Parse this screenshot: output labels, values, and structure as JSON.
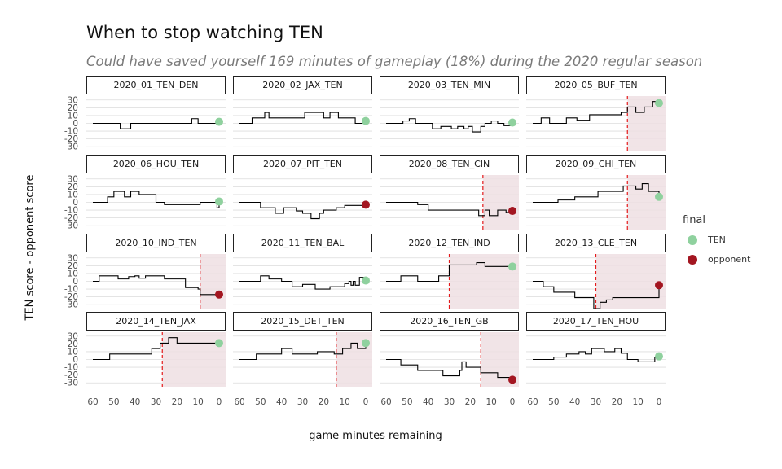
{
  "title": "When to stop watching TEN",
  "subtitle": "Could have saved yourself 169 minutes of gameplay (18%) during the 2020 regular season",
  "chart_data": {
    "type": "line",
    "facets": "small multiples, 4 x 4",
    "xlabel": "game minutes remaining",
    "ylabel": "TEN score - opponent score",
    "xlim": [
      60,
      0
    ],
    "ylim": [
      -35,
      35
    ],
    "x_ticks": [
      60,
      50,
      40,
      30,
      20,
      10,
      0
    ],
    "y_ticks": [
      30,
      20,
      10,
      0,
      -10,
      -20,
      -30
    ],
    "legend": {
      "title": "final",
      "entries": [
        {
          "label": "TEN",
          "color": "#8fd19e"
        },
        {
          "label": "opponent",
          "color": "#a31621"
        }
      ]
    },
    "cutoff_style": {
      "line_color": "#e41a1c",
      "shade_color": "#efdfe3"
    },
    "games": [
      {
        "name": "2020_01_TEN_DEN",
        "final": "TEN",
        "final_diff": 2,
        "cutoff": null,
        "steps": [
          [
            60,
            0
          ],
          [
            47,
            -7
          ],
          [
            42,
            0
          ],
          [
            13,
            6
          ],
          [
            10,
            0
          ],
          [
            0,
            2
          ]
        ]
      },
      {
        "name": "2020_02_JAX_TEN",
        "final": "TEN",
        "final_diff": 3,
        "cutoff": null,
        "steps": [
          [
            60,
            0
          ],
          [
            54,
            7
          ],
          [
            48,
            14
          ],
          [
            46,
            7
          ],
          [
            29,
            14
          ],
          [
            20,
            7
          ],
          [
            17,
            14
          ],
          [
            13,
            7
          ],
          [
            5,
            0
          ],
          [
            0,
            3
          ]
        ]
      },
      {
        "name": "2020_03_TEN_MIN",
        "final": "TEN",
        "final_diff": 1,
        "cutoff": null,
        "steps": [
          [
            60,
            0
          ],
          [
            52,
            3
          ],
          [
            49,
            6
          ],
          [
            46,
            0
          ],
          [
            38,
            -7
          ],
          [
            34,
            -4
          ],
          [
            29,
            -7
          ],
          [
            26,
            -4
          ],
          [
            23,
            -7
          ],
          [
            21,
            -4
          ],
          [
            19,
            -11
          ],
          [
            15,
            -4
          ],
          [
            13,
            0
          ],
          [
            10,
            3
          ],
          [
            7,
            0
          ],
          [
            4,
            -3
          ],
          [
            0,
            1
          ]
        ]
      },
      {
        "name": "2020_05_BUF_TEN",
        "final": "TEN",
        "final_diff": 26,
        "cutoff": 15,
        "steps": [
          [
            60,
            0
          ],
          [
            56,
            7
          ],
          [
            52,
            0
          ],
          [
            44,
            7
          ],
          [
            39,
            4
          ],
          [
            33,
            11
          ],
          [
            18,
            14
          ],
          [
            15,
            21
          ],
          [
            11,
            14
          ],
          [
            7,
            21
          ],
          [
            3,
            28
          ],
          [
            0,
            26
          ]
        ]
      },
      {
        "name": "2020_06_HOU_TEN",
        "final": "TEN",
        "final_diff": 1,
        "cutoff": null,
        "steps": [
          [
            60,
            0
          ],
          [
            53,
            7
          ],
          [
            50,
            14
          ],
          [
            45,
            7
          ],
          [
            42,
            14
          ],
          [
            38,
            10
          ],
          [
            30,
            0
          ],
          [
            26,
            -3
          ],
          [
            9,
            0
          ],
          [
            1,
            -7
          ],
          [
            0,
            1
          ]
        ]
      },
      {
        "name": "2020_07_PIT_TEN",
        "final": "opponent",
        "final_diff": -3,
        "cutoff": null,
        "steps": [
          [
            60,
            0
          ],
          [
            50,
            -7
          ],
          [
            43,
            -14
          ],
          [
            39,
            -7
          ],
          [
            33,
            -11
          ],
          [
            30,
            -14
          ],
          [
            26,
            -21
          ],
          [
            22,
            -14
          ],
          [
            20,
            -10
          ],
          [
            14,
            -7
          ],
          [
            10,
            -4
          ],
          [
            0,
            -3
          ]
        ]
      },
      {
        "name": "2020_08_TEN_CIN",
        "final": "opponent",
        "final_diff": -11,
        "cutoff": 14,
        "steps": [
          [
            60,
            0
          ],
          [
            45,
            -3
          ],
          [
            40,
            -10
          ],
          [
            16,
            -17
          ],
          [
            13,
            -10
          ],
          [
            11,
            -17
          ],
          [
            7,
            -10
          ],
          [
            3,
            -13
          ],
          [
            0,
            -11
          ]
        ]
      },
      {
        "name": "2020_09_CHI_TEN",
        "final": "TEN",
        "final_diff": 7,
        "cutoff": 15,
        "steps": [
          [
            60,
            0
          ],
          [
            48,
            3
          ],
          [
            40,
            7
          ],
          [
            29,
            14
          ],
          [
            17,
            21
          ],
          [
            11,
            17
          ],
          [
            8,
            24
          ],
          [
            5,
            14
          ],
          [
            0,
            7
          ]
        ]
      },
      {
        "name": "2020_10_IND_TEN",
        "final": "opponent",
        "final_diff": -17,
        "cutoff": 9,
        "steps": [
          [
            60,
            0
          ],
          [
            57,
            7
          ],
          [
            48,
            3
          ],
          [
            43,
            6
          ],
          [
            40,
            7
          ],
          [
            38,
            4
          ],
          [
            35,
            7
          ],
          [
            26,
            3
          ],
          [
            16,
            -8
          ],
          [
            10,
            -10
          ],
          [
            9,
            -17
          ],
          [
            0,
            -17
          ]
        ]
      },
      {
        "name": "2020_11_TEN_BAL",
        "final": "TEN",
        "final_diff": 1,
        "cutoff": null,
        "steps": [
          [
            60,
            0
          ],
          [
            50,
            7
          ],
          [
            46,
            3
          ],
          [
            40,
            0
          ],
          [
            35,
            -7
          ],
          [
            30,
            -4
          ],
          [
            24,
            -10
          ],
          [
            17,
            -7
          ],
          [
            10,
            -3
          ],
          [
            8,
            0
          ],
          [
            7,
            -5
          ],
          [
            6,
            0
          ],
          [
            5,
            -5
          ],
          [
            3,
            5
          ],
          [
            0,
            1
          ]
        ]
      },
      {
        "name": "2020_12_TEN_IND",
        "final": "TEN",
        "final_diff": 19,
        "cutoff": 30,
        "steps": [
          [
            60,
            0
          ],
          [
            53,
            7
          ],
          [
            45,
            0
          ],
          [
            35,
            7
          ],
          [
            30,
            21
          ],
          [
            17,
            24
          ],
          [
            13,
            19
          ],
          [
            0,
            19
          ]
        ]
      },
      {
        "name": "2020_13_CLE_TEN",
        "final": "opponent",
        "final_diff": -5,
        "cutoff": 30,
        "steps": [
          [
            60,
            0
          ],
          [
            55,
            -7
          ],
          [
            50,
            -14
          ],
          [
            40,
            -21
          ],
          [
            31,
            -35
          ],
          [
            28,
            -27
          ],
          [
            25,
            -24
          ],
          [
            22,
            -21
          ],
          [
            0,
            -5
          ]
        ]
      },
      {
        "name": "2020_14_TEN_JAX",
        "final": "TEN",
        "final_diff": 21,
        "cutoff": 27,
        "steps": [
          [
            60,
            0
          ],
          [
            52,
            7
          ],
          [
            32,
            14
          ],
          [
            28,
            21
          ],
          [
            24,
            28
          ],
          [
            20,
            21
          ],
          [
            0,
            21
          ]
        ]
      },
      {
        "name": "2020_15_DET_TEN",
        "final": "TEN",
        "final_diff": 21,
        "cutoff": 14,
        "steps": [
          [
            60,
            0
          ],
          [
            52,
            7
          ],
          [
            40,
            14
          ],
          [
            35,
            7
          ],
          [
            23,
            10
          ],
          [
            15,
            7
          ],
          [
            11,
            14
          ],
          [
            7,
            21
          ],
          [
            4,
            14
          ],
          [
            0,
            21
          ]
        ]
      },
      {
        "name": "2020_16_TEN_GB",
        "final": "opponent",
        "final_diff": -26,
        "cutoff": 15,
        "steps": [
          [
            60,
            0
          ],
          [
            53,
            -7
          ],
          [
            45,
            -14
          ],
          [
            33,
            -21
          ],
          [
            25,
            -14
          ],
          [
            24,
            -3
          ],
          [
            22,
            -10
          ],
          [
            15,
            -17
          ],
          [
            7,
            -23
          ],
          [
            0,
            -26
          ]
        ]
      },
      {
        "name": "2020_17_TEN_HOU",
        "final": "TEN",
        "final_diff": 4,
        "cutoff": null,
        "steps": [
          [
            60,
            0
          ],
          [
            50,
            3
          ],
          [
            44,
            7
          ],
          [
            38,
            10
          ],
          [
            35,
            7
          ],
          [
            32,
            14
          ],
          [
            26,
            10
          ],
          [
            21,
            14
          ],
          [
            18,
            8
          ],
          [
            15,
            0
          ],
          [
            10,
            -3
          ],
          [
            2,
            3
          ],
          [
            0,
            4
          ]
        ]
      }
    ]
  }
}
